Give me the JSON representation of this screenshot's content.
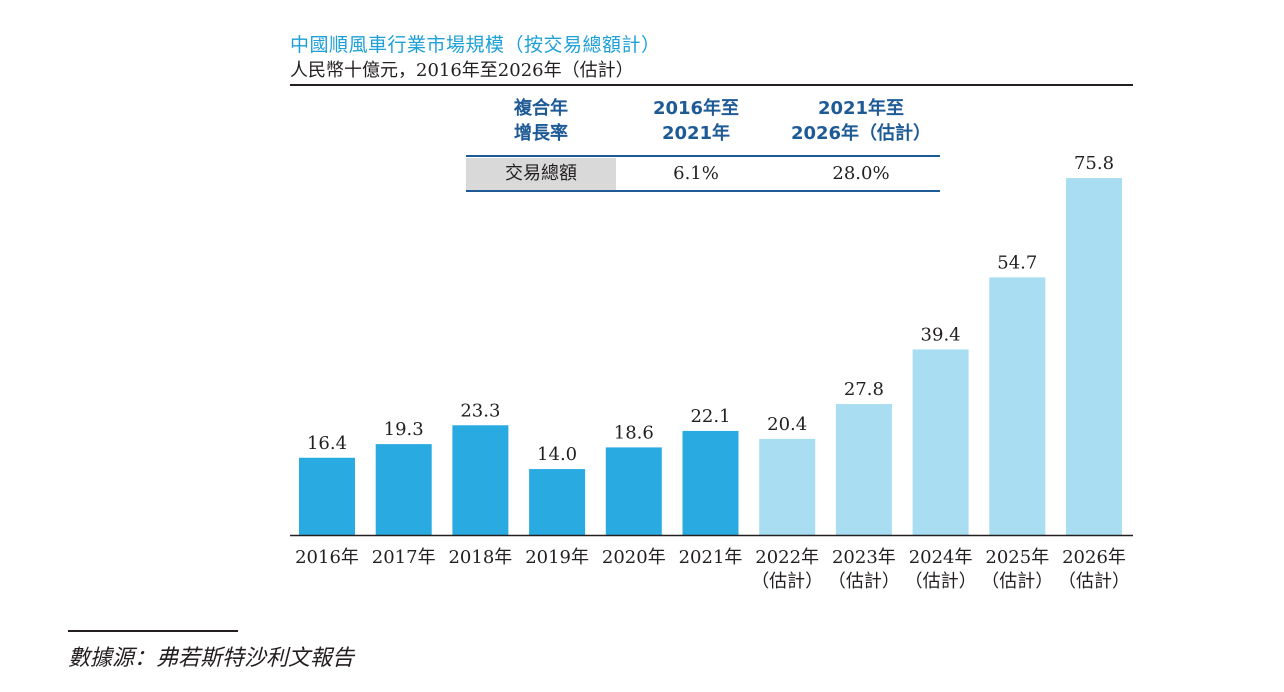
{
  "title": "中國順風車行業市場規模（按交易總額計）",
  "subtitle": "人民幣十億元，2016年至2026年（估計）",
  "cagr_table": {
    "header_label_line1": "複合年",
    "header_label_line2": "增長率",
    "col1_line1": "2016年至",
    "col1_line2": "2021年",
    "col2_line1": "2021年至",
    "col2_line2": "2026年（估計）",
    "row_label": "交易總額",
    "row_val1": "6.1%",
    "row_val2": "28.0%"
  },
  "colors": {
    "actual": "#29abe2",
    "estimate": "#a8ddf2",
    "title": "#1ea0d8",
    "header": "#1e5a96"
  },
  "chart_data": {
    "type": "bar",
    "title": "中國順風車行業市場規模（按交易總額計）",
    "ylabel": "人民幣十億元",
    "categories": [
      "2016年",
      "2017年",
      "2018年",
      "2019年",
      "2020年",
      "2021年",
      "2022年",
      "2023年",
      "2024年",
      "2025年",
      "2026年"
    ],
    "category_notes": [
      "",
      "",
      "",
      "",
      "",
      "",
      "（估計）",
      "（估計）",
      "（估計）",
      "（估計）",
      "（估計）"
    ],
    "values": [
      16.4,
      19.3,
      23.3,
      14.0,
      18.6,
      22.1,
      20.4,
      27.8,
      39.4,
      54.7,
      75.8
    ],
    "labels": [
      "16.4",
      "19.3",
      "23.3",
      "14.0",
      "18.6",
      "22.1",
      "20.4",
      "27.8",
      "39.4",
      "54.7",
      "75.8"
    ],
    "estimated": [
      false,
      false,
      false,
      false,
      false,
      false,
      true,
      true,
      true,
      true,
      true
    ],
    "ylim": [
      0,
      80
    ],
    "grid": false
  },
  "source": "數據源：弗若斯特沙利文報告"
}
